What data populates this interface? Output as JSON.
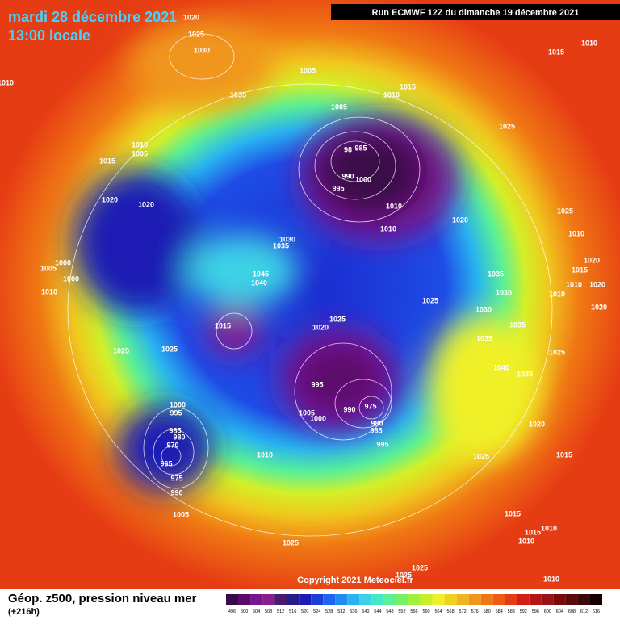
{
  "header": {
    "date": "mardi 28 décembre 2021",
    "time": "13:00 locale",
    "run": "Run ECMWF 12Z du dimanche 19 décembre 2021"
  },
  "map": {
    "isobar_labels": [
      "1020",
      "1025",
      "1030",
      "1035",
      "1005",
      "1010",
      "1015",
      "1010",
      "1005",
      "985",
      "98",
      "990",
      "1000",
      "995",
      "1010",
      "1010",
      "1020",
      "1025",
      "1015",
      "1010",
      "1010",
      "1005",
      "1015",
      "1020",
      "1020",
      "1030",
      "1035",
      "1005",
      "1000",
      "1000",
      "1010",
      "1045",
      "1040",
      "1035",
      "1030",
      "1030",
      "1025",
      "1025",
      "1020",
      "1015",
      "1025",
      "1025",
      "1035",
      "1035",
      "1040",
      "1035",
      "1025",
      "995",
      "975",
      "990",
      "980",
      "985",
      "1005",
      "1000",
      "995",
      "1010",
      "1000",
      "995",
      "985",
      "980",
      "970",
      "965",
      "975",
      "990",
      "1005",
      "1025",
      "1025",
      "1015",
      "1020",
      "1025",
      "1010",
      "1020",
      "1015",
      "1010",
      "1020",
      "1010",
      "1020",
      "1015",
      "1010",
      "1015",
      "1010",
      "1025",
      "1025",
      "1010"
    ]
  },
  "footer": {
    "field": "Géop. z500, pression niveau mer",
    "lead": "(+216h)",
    "copyright": "Copyright 2021 Meteociel.fr"
  },
  "colorbar": {
    "labels": [
      "496",
      "500",
      "504",
      "508",
      "512",
      "516",
      "520",
      "524",
      "528",
      "532",
      "536",
      "540",
      "544",
      "548",
      "552",
      "556",
      "560",
      "564",
      "568",
      "572",
      "576",
      "580",
      "584",
      "588",
      "592",
      "596",
      "600",
      "604",
      "608",
      "612",
      "616"
    ],
    "colors": [
      "#3a0a48",
      "#5a0a6a",
      "#7a1490",
      "#8c1e8c",
      "#4a1a70",
      "#2a1a8c",
      "#1a1ab4",
      "#1e3cdc",
      "#1e64f0",
      "#1e8cf0",
      "#28b4f0",
      "#3cd2e6",
      "#46e6c8",
      "#5af096",
      "#78f064",
      "#a0f03c",
      "#c8f028",
      "#f0f028",
      "#f0d21e",
      "#f0b41e",
      "#f0961e",
      "#f07814",
      "#f05a14",
      "#e63c14",
      "#d21e14",
      "#b41414",
      "#961414",
      "#780a0a",
      "#5a0a0a",
      "#3c0a0a",
      "#140000"
    ]
  }
}
